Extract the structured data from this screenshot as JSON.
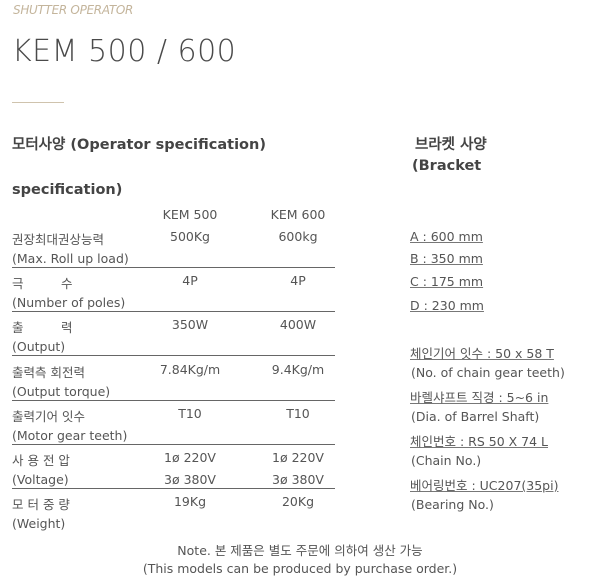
{
  "subtitle": "SHUTTER OPERATOR",
  "title": "KEM 500 / 600",
  "motor": {
    "heading": "모터사양 (Operator specification)",
    "heading_cont": "specification)",
    "columns": [
      "KEM 500",
      "KEM 600"
    ],
    "rows": [
      {
        "ko": "권장최대권상능력",
        "en": "(Max. Roll up load)",
        "v1": "500Kg",
        "v2": "600kg"
      },
      {
        "ko": "극　　　수",
        "en": "(Number of poles)",
        "v1": "4P",
        "v2": "4P"
      },
      {
        "ko": "출　　　력",
        "en": "(Output)",
        "v1": "350W",
        "v2": "400W"
      },
      {
        "ko": "출력측 회전력",
        "en": "(Output torque)",
        "v1": "7.84Kg/m",
        "v2": "9.4Kg/m"
      },
      {
        "ko": "출력기어 잇수",
        "en": "(Motor gear teeth)",
        "v1": "T10",
        "v2": "T10"
      },
      {
        "ko": "사 용 전 압",
        "en": "(Voltage)",
        "v1": "1ø 220V",
        "v2": "1ø 220V",
        "v1b": "3ø 380V",
        "v2b": "3ø 380V"
      },
      {
        "ko": "모 터 중 량",
        "en": "(Weight)",
        "v1": "19Kg",
        "v2": "20Kg"
      }
    ]
  },
  "bracket": {
    "heading": "브라켓 사양",
    "heading2": "(Bracket",
    "dims": [
      "A : 600 mm",
      "B : 350 mm",
      "C : 175  mm",
      "D : 230 mm"
    ],
    "items": [
      {
        "ko": "체인기어 잇수 : 50 x 58 T",
        "en": "(No. of chain gear teeth)"
      },
      {
        "ko": "바렐샤프트 직경 : 5~6 in",
        "en": "(Dia. of Barrel Shaft)"
      },
      {
        "ko": "체인번호 : RS 50 X 74 L",
        "en": "(Chain No.)"
      },
      {
        "ko": "베어링번호 : UC207(35pi)",
        "en": "(Bearing No.)"
      }
    ]
  },
  "note": {
    "ko": "Note. 본 제품은 별도 주문에 의하여 생산 가능",
    "en": "(This models can be produced by purchase order.)"
  }
}
